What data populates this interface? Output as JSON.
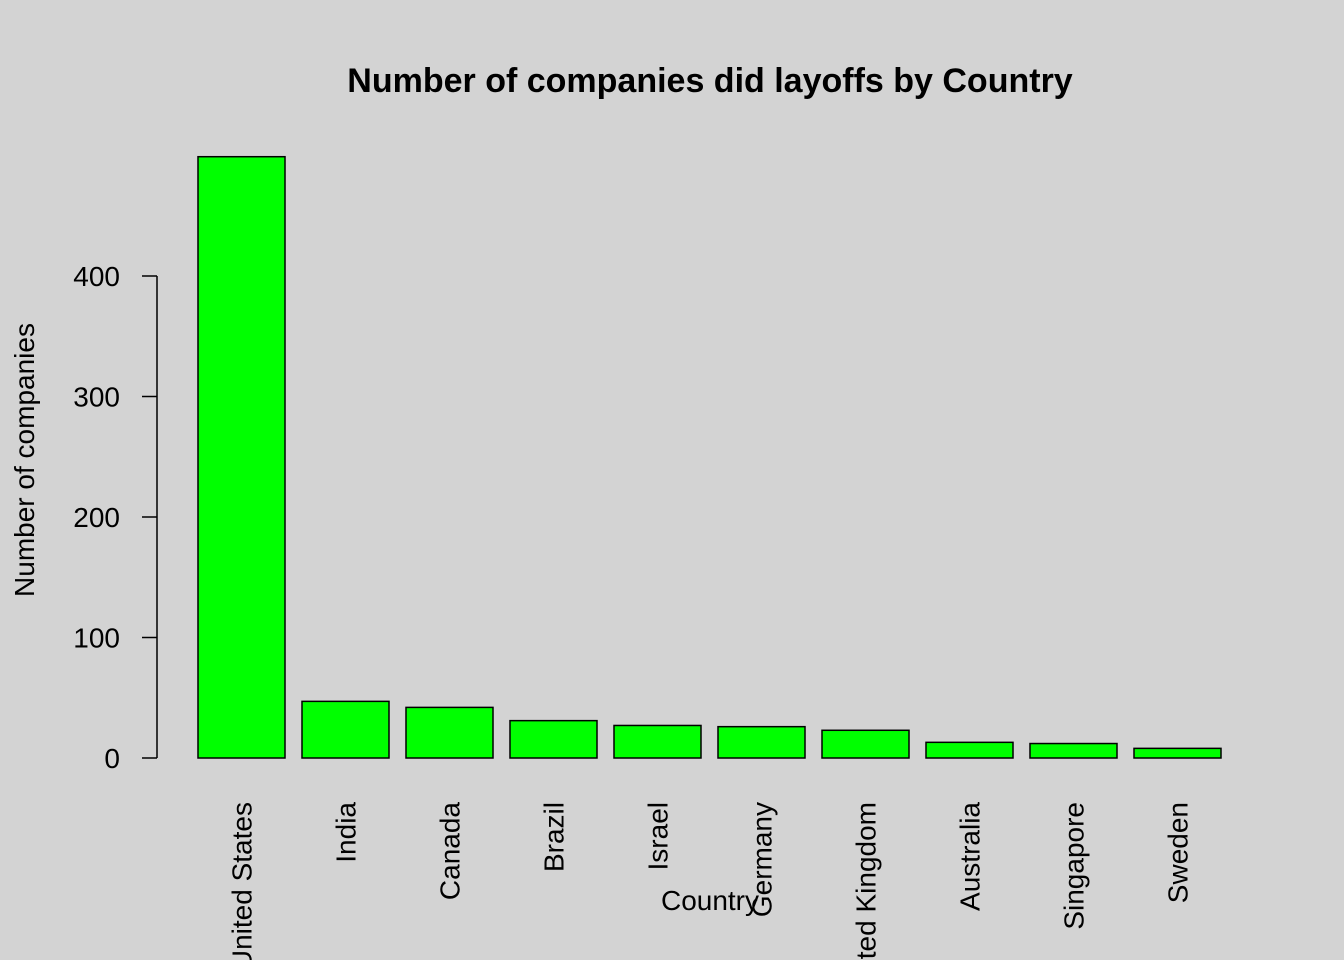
{
  "chart_data": {
    "type": "bar",
    "title": "Number of companies did layoffs by Country",
    "x_label": "Country",
    "y_label": "Number of companies",
    "categories": [
      "United States",
      "India",
      "Canada",
      "Brazil",
      "Israel",
      "Germany",
      "United Kingdom",
      "Australia",
      "Singapore",
      "Sweden"
    ],
    "values": [
      499,
      47,
      42,
      31,
      27,
      26,
      23,
      13,
      12,
      8
    ],
    "color": "#00ff00",
    "ylim": [
      0,
      520
    ],
    "yticks": [
      0,
      100,
      200,
      300,
      400
    ],
    "grid": false
  }
}
